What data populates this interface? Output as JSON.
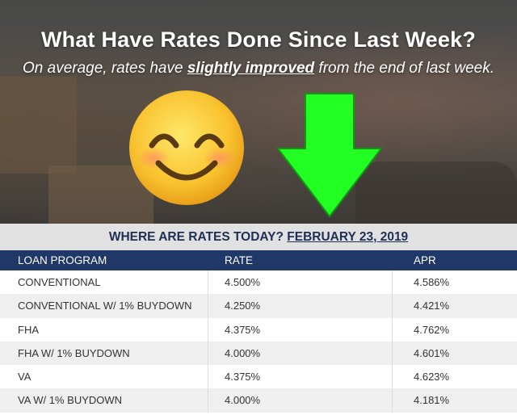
{
  "header": {
    "title": "What Have Rates Done Since Last Week?",
    "subtitle_prefix": "On average, rates have ",
    "subtitle_emphasis": "slightly improved",
    "subtitle_suffix": " from the end of last week."
  },
  "icons": {
    "emoji": "smiling-face-icon",
    "arrow": "down-arrow-icon",
    "arrow_color": "#22ff22"
  },
  "banner": {
    "label": "WHERE ARE RATES TODAY? ",
    "date": "FEBRUARY 23, 2019"
  },
  "table": {
    "headers": [
      "LOAN PROGRAM",
      "RATE",
      "APR"
    ],
    "rows": [
      {
        "program": "CONVENTIONAL",
        "rate": "4.500%",
        "apr": "4.586%"
      },
      {
        "program": "CONVENTIONAL W/ 1% BUYDOWN",
        "rate": "4.250%",
        "apr": "4.421%"
      },
      {
        "program": "FHA",
        "rate": "4.375%",
        "apr": "4.762%"
      },
      {
        "program": "FHA W/ 1% BUYDOWN",
        "rate": "4.000%",
        "apr": "4.601%"
      },
      {
        "program": "VA",
        "rate": "4.375%",
        "apr": "4.623%"
      },
      {
        "program": "VA W/ 1% BUYDOWN",
        "rate": "4.000%",
        "apr": "4.181%"
      }
    ]
  },
  "colors": {
    "header_bg": "#1f3868",
    "banner_bg": "#e1e1e1",
    "row_alt_bg": "#efefef"
  }
}
